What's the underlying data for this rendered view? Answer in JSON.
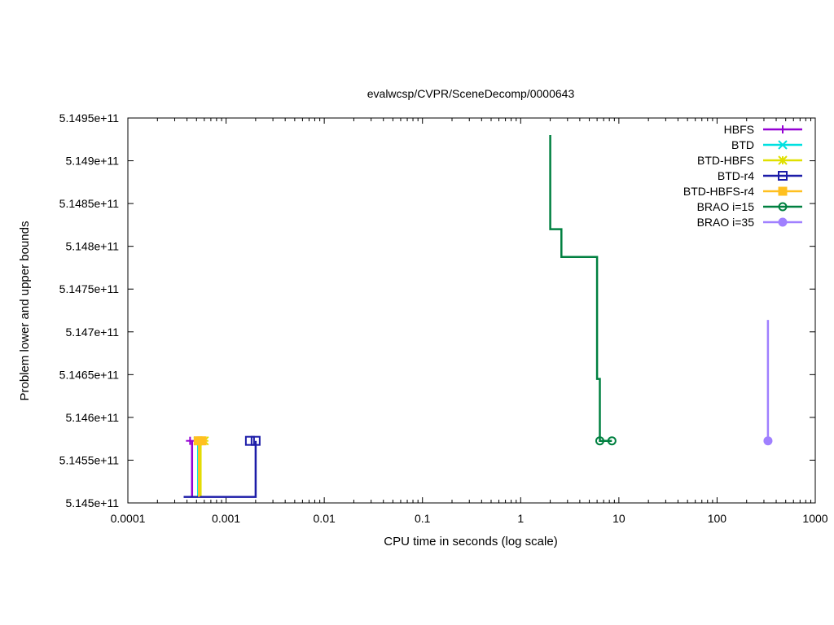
{
  "chart_data": {
    "type": "line",
    "title": "evalwcsp/CVPR/SceneDecomp/0000643",
    "xlabel": "CPU time in seconds (log scale)",
    "ylabel": "Problem lower and upper bounds",
    "x_scale": "log",
    "xlim": [
      0.0001,
      1000
    ],
    "ylim": [
      514500000000,
      514950000000
    ],
    "x_ticks": [
      0.0001,
      0.001,
      0.01,
      0.1,
      1,
      10,
      100,
      1000
    ],
    "x_tick_labels": [
      "0.0001",
      "0.001",
      "0.01",
      "0.1",
      "1",
      "10",
      "100",
      "1000"
    ],
    "y_ticks": [
      514500000000,
      514550000000,
      514600000000,
      514650000000,
      514700000000,
      514750000000,
      514800000000,
      514850000000,
      514900000000,
      514950000000
    ],
    "y_tick_labels": [
      "5.145e+11",
      "5.1455e+11",
      "5.146e+11",
      "5.1465e+11",
      "5.147e+11",
      "5.1475e+11",
      "5.148e+11",
      "5.1485e+11",
      "5.149e+11",
      "5.1495e+11"
    ],
    "grid": false,
    "legend_position": "top-right",
    "series": [
      {
        "name": "HBFS",
        "color": "#9400d3",
        "marker": "plus",
        "line": [
          [
            0.00045,
            514572600000
          ],
          [
            0.00045,
            514507000000
          ]
        ],
        "points": [
          [
            0.00043,
            514572600000
          ]
        ]
      },
      {
        "name": "BTD",
        "color": "#00e0e0",
        "marker": "cross",
        "line": [
          [
            0.00052,
            514572600000
          ],
          [
            0.00052,
            514507000000
          ]
        ],
        "points": [
          [
            0.00052,
            514572600000
          ]
        ]
      },
      {
        "name": "BTD-HBFS",
        "color": "#e0e000",
        "marker": "star",
        "line": [
          [
            0.00055,
            514572600000
          ],
          [
            0.00055,
            514507000000
          ]
        ],
        "points": [
          [
            0.00055,
            514572600000
          ],
          [
            0.0006,
            514572600000
          ]
        ]
      },
      {
        "name": "BTD-r4",
        "color": "#1c1ca8",
        "marker": "open-square",
        "line": [
          [
            0.00037,
            514507000000
          ],
          [
            0.002,
            514507000000
          ],
          [
            0.002,
            514572600000
          ]
        ],
        "points": [
          [
            0.00175,
            514572600000
          ],
          [
            0.002,
            514572600000
          ]
        ]
      },
      {
        "name": "BTD-HBFS-r4",
        "color": "#ffc020",
        "marker": "filled-square",
        "line": [
          [
            0.00053,
            514572600000
          ],
          [
            0.00053,
            514507000000
          ]
        ],
        "points": [
          [
            0.00052,
            514572600000
          ],
          [
            0.00057,
            514572600000
          ]
        ]
      },
      {
        "name": "BRAO i=15",
        "color": "#008040",
        "marker": "open-circle",
        "line": [
          [
            2.0,
            514930000000
          ],
          [
            2.0,
            514820000000
          ],
          [
            2.6,
            514820000000
          ],
          [
            2.6,
            514787500000
          ],
          [
            6.0,
            514787500000
          ],
          [
            6.0,
            514645000000
          ],
          [
            6.4,
            514645000000
          ],
          [
            6.4,
            514572600000
          ],
          [
            8.5,
            514572600000
          ]
        ],
        "points": [
          [
            6.4,
            514572600000
          ],
          [
            8.5,
            514572600000
          ]
        ]
      },
      {
        "name": "BRAO i=35",
        "color": "#a080ff",
        "marker": "filled-circle",
        "line": [
          [
            330,
            514714000000
          ],
          [
            330,
            514572600000
          ]
        ],
        "points": [
          [
            330,
            514572600000
          ]
        ]
      }
    ]
  }
}
